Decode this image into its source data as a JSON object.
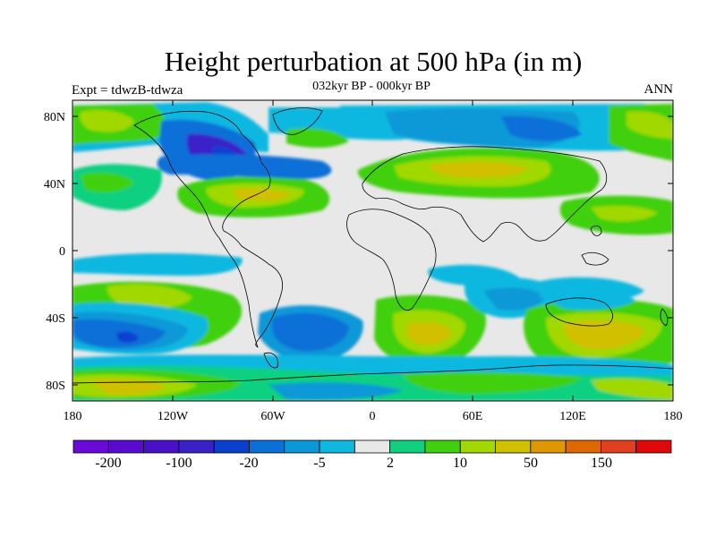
{
  "title": "Height perturbation at 500 hPa (in m)",
  "left_subtitle": "Expt = tdwzB-tdwza",
  "center_subtitle": "032kyr BP - 000kyr BP",
  "right_subtitle": "ANN",
  "lat_ticks": [
    "80N",
    "40N",
    "0",
    "40S",
    "80S"
  ],
  "lon_ticks": [
    "180",
    "120W",
    "60W",
    "0",
    "60E",
    "120E",
    "180"
  ],
  "colorbar": {
    "colors": [
      "#6a0ad8",
      "#5a0ad0",
      "#4a10c8",
      "#3a20c8",
      "#0a40d0",
      "#0a70d8",
      "#0a98d8",
      "#10b8e0",
      "#e8e8e8",
      "#10d080",
      "#40d010",
      "#a0d800",
      "#d0c000",
      "#e09800",
      "#e06800",
      "#e04020",
      "#e00808"
    ],
    "labels": [
      "-200",
      "-100",
      "-20",
      "-5",
      "2",
      "10",
      "50",
      "150"
    ]
  }
}
